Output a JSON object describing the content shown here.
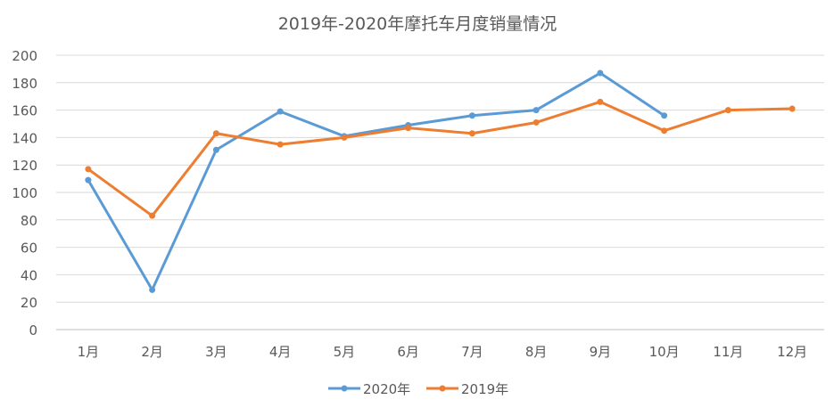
{
  "chart_data": {
    "type": "line",
    "title": "2019年-2020年摩托车月度销量情况",
    "categories": [
      "1月",
      "2月",
      "3月",
      "4月",
      "5月",
      "6月",
      "7月",
      "8月",
      "9月",
      "10月",
      "11月",
      "12月"
    ],
    "ylim": [
      0,
      200
    ],
    "yticks": [
      0,
      20,
      40,
      60,
      80,
      100,
      120,
      140,
      160,
      180,
      200
    ],
    "grid": true,
    "legend": "bottom",
    "series": [
      {
        "name": "2020年",
        "color": "#5B9BD5",
        "values": [
          109,
          29,
          131,
          159,
          141,
          149,
          156,
          160,
          187,
          156,
          null,
          null
        ]
      },
      {
        "name": "2019年",
        "color": "#ED7D31",
        "values": [
          117,
          83,
          143,
          135,
          140,
          147,
          143,
          151,
          166,
          145,
          160,
          161
        ]
      }
    ]
  }
}
